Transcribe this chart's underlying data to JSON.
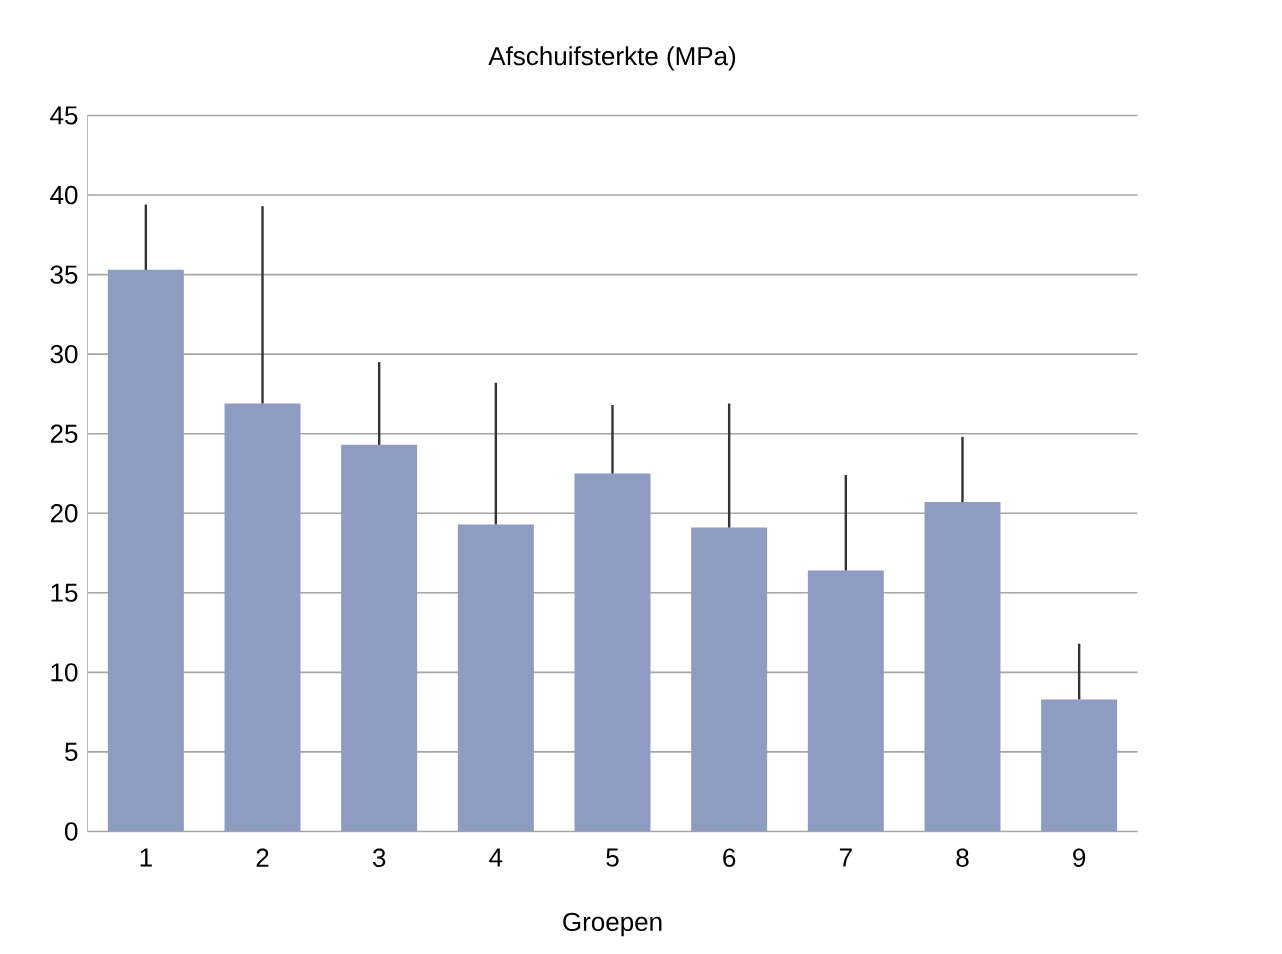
{
  "chart_data": {
    "type": "bar",
    "title": "Afschuifsterkte (MPa)",
    "xlabel": "Groepen",
    "categories": [
      "1",
      "2",
      "3",
      "4",
      "5",
      "6",
      "7",
      "8",
      "9"
    ],
    "values": [
      35.3,
      26.9,
      24.3,
      19.3,
      22.5,
      19.1,
      16.4,
      20.7,
      8.3
    ],
    "errors": [
      [
        35.3,
        39.4
      ],
      [
        26.9,
        39.3
      ],
      [
        24.3,
        29.5
      ],
      [
        19.3,
        28.2
      ],
      [
        22.5,
        26.8
      ],
      [
        19.1,
        26.9
      ],
      [
        16.4,
        22.4
      ],
      [
        20.7,
        24.8
      ],
      [
        8.3,
        11.8
      ]
    ],
    "color": "#8e9cc2",
    "ylim": [
      0,
      45
    ],
    "yticks": [
      0,
      5,
      10,
      15,
      20,
      25,
      30,
      35,
      40,
      45
    ],
    "grid": "y"
  }
}
